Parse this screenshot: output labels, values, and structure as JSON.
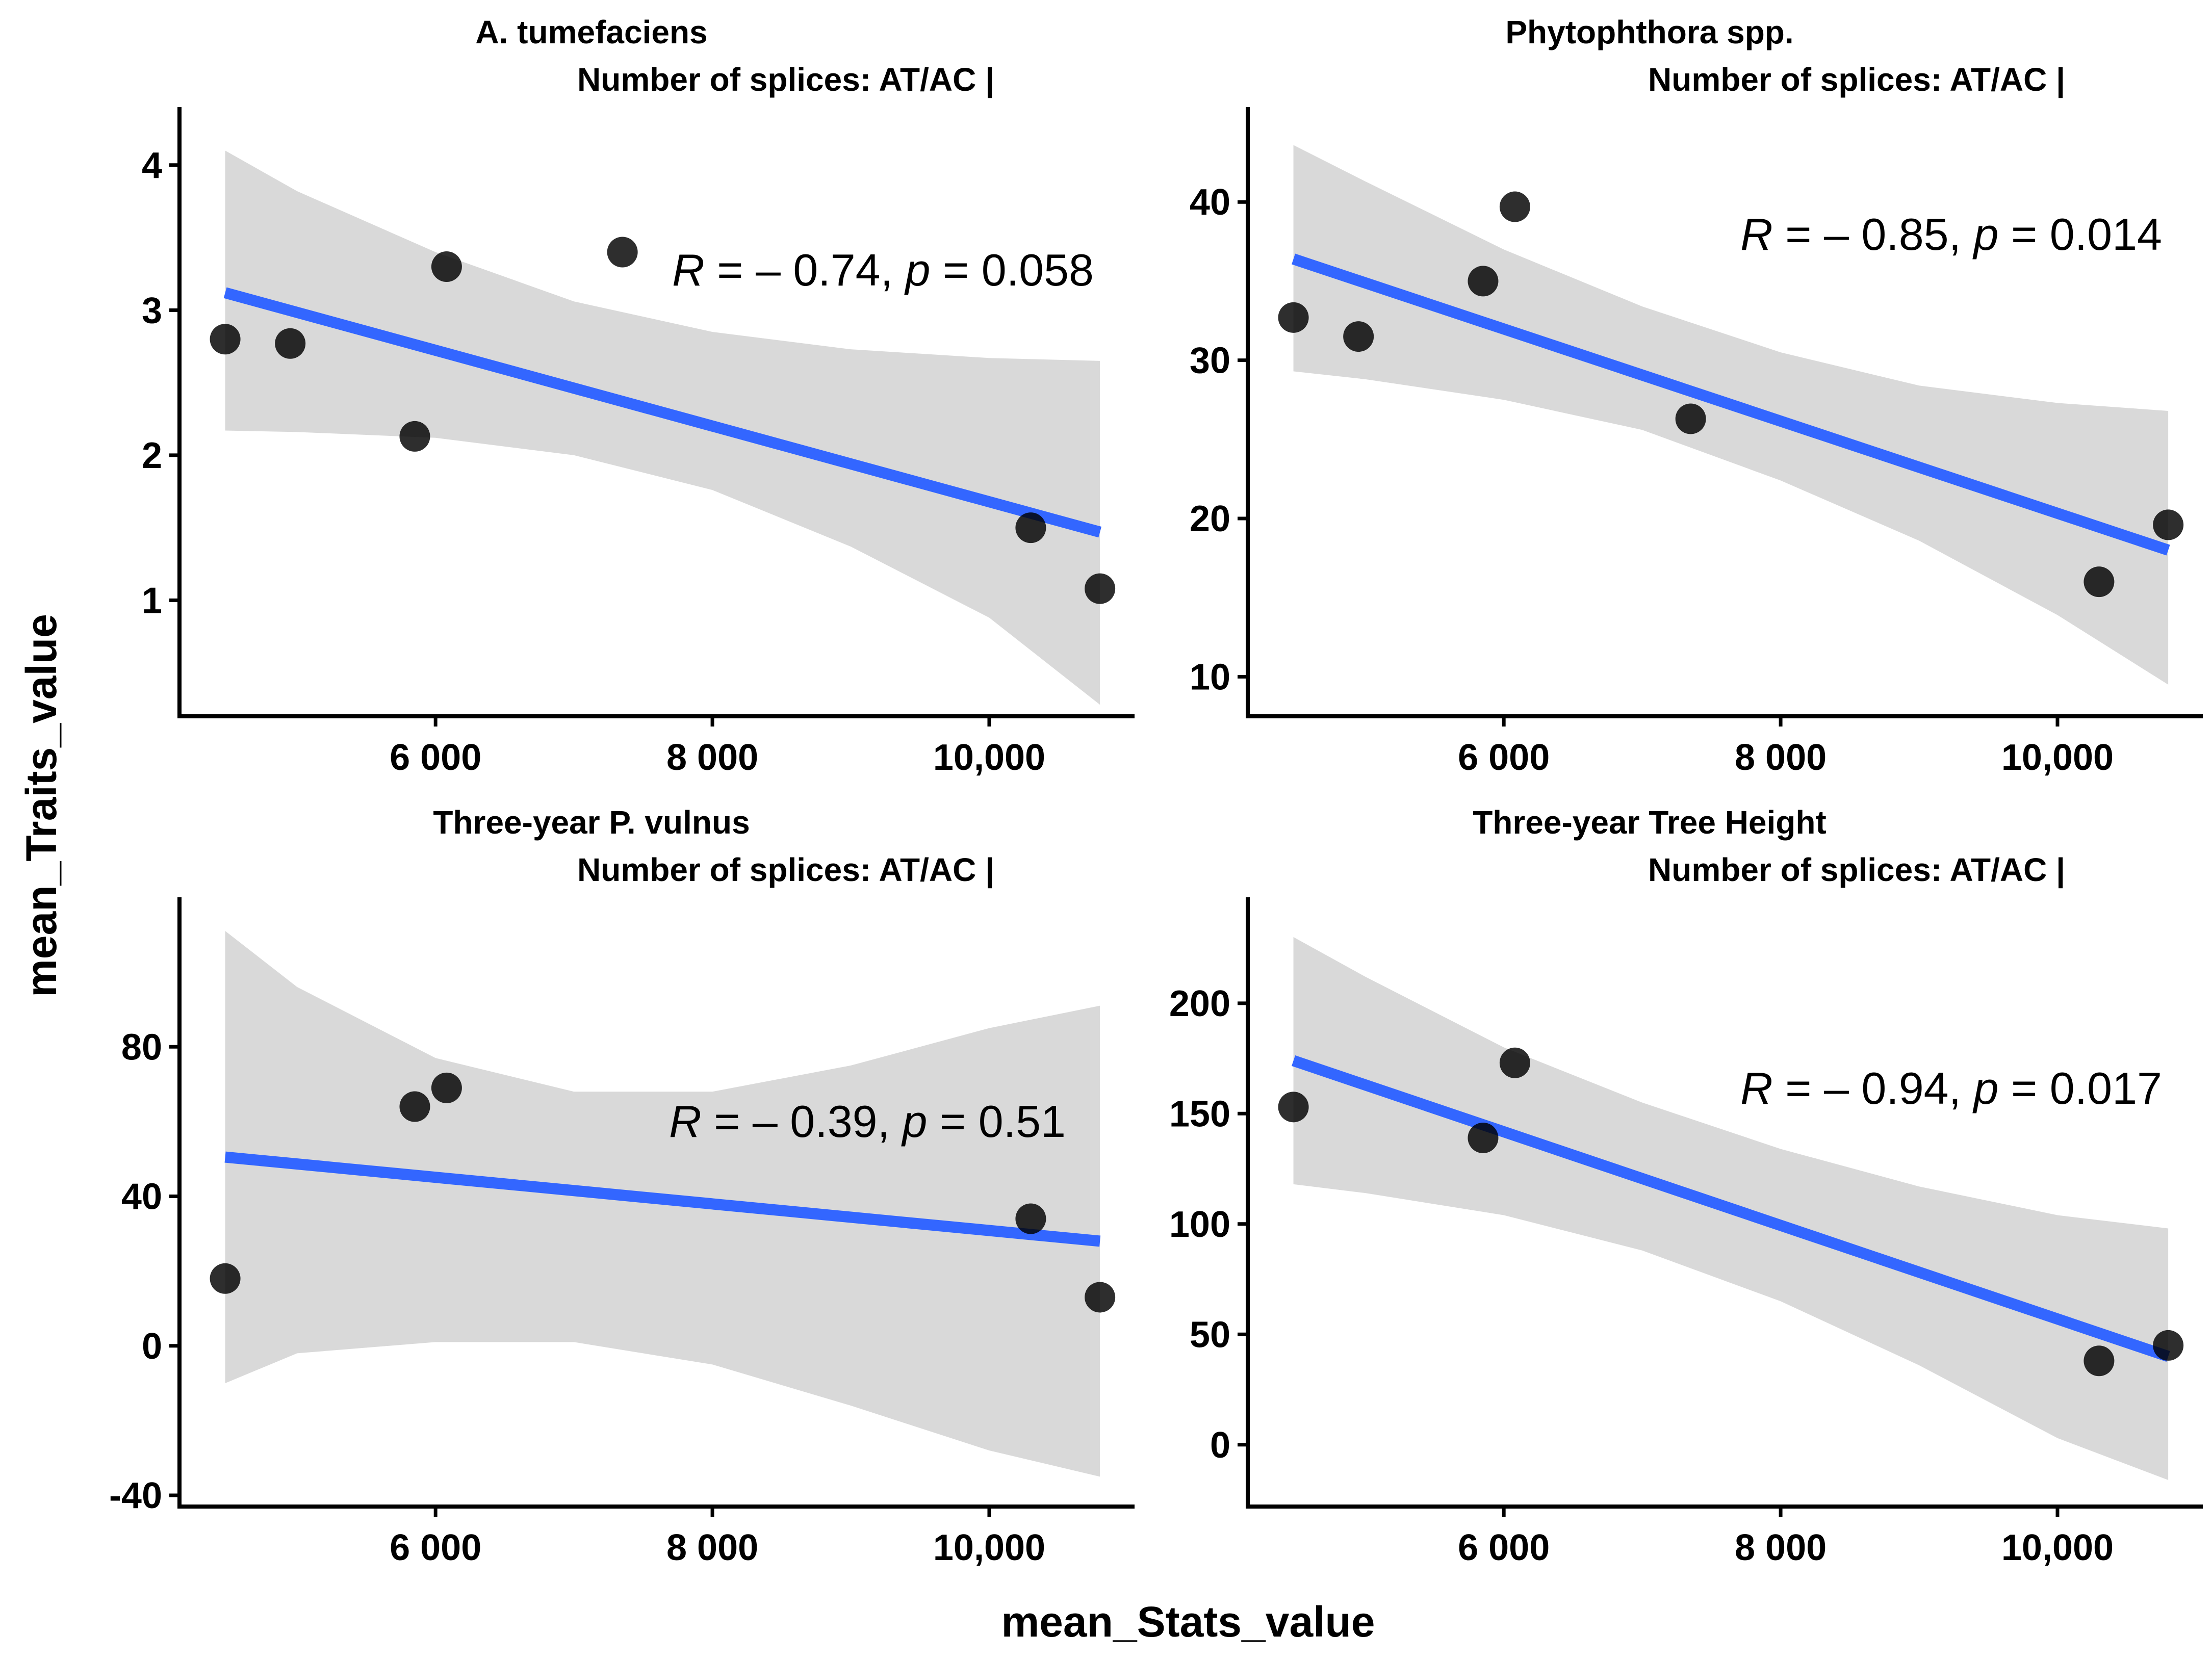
{
  "figure": {
    "x_axis_title": "mean_Stats_value",
    "y_axis_title": "mean_Traits_value"
  },
  "chart_data": [
    {
      "type": "scatter",
      "title": "A. tumefaciens",
      "subtitle": "Number of splices: AT/AC |",
      "xlabel": "mean_Stats_value",
      "ylabel": "mean_Traits_value",
      "xlim": [
        4150,
        11050
      ],
      "ylim": [
        0.2,
        4.4
      ],
      "xticks": [
        6000,
        8000,
        10000
      ],
      "xtick_labels": [
        "6 000",
        "8 000",
        "10,000"
      ],
      "yticks": [
        1,
        2,
        3,
        4
      ],
      "ytick_labels": [
        "1",
        "2",
        "3",
        "4"
      ],
      "points": [
        {
          "x": 4480,
          "y": 2.8
        },
        {
          "x": 4950,
          "y": 2.77
        },
        {
          "x": 5850,
          "y": 2.13
        },
        {
          "x": 6080,
          "y": 3.3
        },
        {
          "x": 7350,
          "y": 3.4
        },
        {
          "x": 10300,
          "y": 1.5
        },
        {
          "x": 10800,
          "y": 1.08
        }
      ],
      "fit": {
        "x": [
          4480,
          10800
        ],
        "y": [
          3.12,
          1.47
        ]
      },
      "ci_upper": [
        [
          4480,
          4.1
        ],
        [
          5000,
          3.82
        ],
        [
          6000,
          3.4
        ],
        [
          7000,
          3.06
        ],
        [
          8000,
          2.85
        ],
        [
          9000,
          2.73
        ],
        [
          10000,
          2.67
        ],
        [
          10800,
          2.65
        ]
      ],
      "ci_lower": [
        [
          4480,
          2.17
        ],
        [
          5000,
          2.16
        ],
        [
          6000,
          2.12
        ],
        [
          7000,
          2.0
        ],
        [
          8000,
          1.76
        ],
        [
          9000,
          1.37
        ],
        [
          10000,
          0.88
        ],
        [
          10800,
          0.28
        ]
      ],
      "annotation": {
        "r_label": "R",
        "r_value": " = – 0.74, ",
        "p_label": "p",
        "p_value": " = 0.058"
      }
    },
    {
      "type": "scatter",
      "title": "Phytophthora spp.",
      "subtitle": "Number of splices: AT/AC |",
      "xlabel": "mean_Stats_value",
      "ylabel": "mean_Traits_value",
      "xlim": [
        4150,
        11050
      ],
      "ylim": [
        7.5,
        46
      ],
      "xticks": [
        6000,
        8000,
        10000
      ],
      "xtick_labels": [
        "6 000",
        "8 000",
        "10,000"
      ],
      "yticks": [
        10,
        20,
        30,
        40
      ],
      "ytick_labels": [
        "10",
        "20",
        "30",
        "40"
      ],
      "points": [
        {
          "x": 4480,
          "y": 32.7
        },
        {
          "x": 4950,
          "y": 31.5
        },
        {
          "x": 5850,
          "y": 35.0
        },
        {
          "x": 6080,
          "y": 39.7
        },
        {
          "x": 7350,
          "y": 26.3
        },
        {
          "x": 10300,
          "y": 16.0
        },
        {
          "x": 10800,
          "y": 19.6
        }
      ],
      "fit": {
        "x": [
          4480,
          10800
        ],
        "y": [
          36.4,
          18.0
        ]
      },
      "ci_upper": [
        [
          4480,
          43.6
        ],
        [
          5000,
          41.3
        ],
        [
          6000,
          37.0
        ],
        [
          7000,
          33.4
        ],
        [
          8000,
          30.5
        ],
        [
          9000,
          28.4
        ],
        [
          10000,
          27.3
        ],
        [
          10800,
          26.8
        ]
      ],
      "ci_lower": [
        [
          4480,
          29.3
        ],
        [
          5000,
          28.8
        ],
        [
          6000,
          27.5
        ],
        [
          7000,
          25.6
        ],
        [
          8000,
          22.4
        ],
        [
          9000,
          18.6
        ],
        [
          10000,
          13.9
        ],
        [
          10800,
          9.5
        ]
      ],
      "annotation": {
        "r_label": "R",
        "r_value": " = – 0.85, ",
        "p_label": "p",
        "p_value": " = 0.014"
      }
    },
    {
      "type": "scatter",
      "title": "Three-year P. vulnus",
      "subtitle": "Number of splices: AT/AC |",
      "xlabel": "mean_Stats_value",
      "ylabel": "mean_Traits_value",
      "xlim": [
        4150,
        11050
      ],
      "ylim": [
        -43,
        120
      ],
      "xticks": [
        6000,
        8000,
        10000
      ],
      "xtick_labels": [
        "6 000",
        "8 000",
        "10,000"
      ],
      "yticks": [
        -40,
        0,
        40,
        80
      ],
      "ytick_labels": [
        "-40",
        "0",
        "40",
        "80"
      ],
      "points": [
        {
          "x": 4480,
          "y": 18
        },
        {
          "x": 5850,
          "y": 64
        },
        {
          "x": 6080,
          "y": 69
        },
        {
          "x": 10300,
          "y": 34
        },
        {
          "x": 10800,
          "y": 13
        }
      ],
      "fit": {
        "x": [
          4480,
          10800
        ],
        "y": [
          50.5,
          28.0
        ]
      },
      "ci_upper": [
        [
          4480,
          111
        ],
        [
          5000,
          96
        ],
        [
          6000,
          77
        ],
        [
          7000,
          68
        ],
        [
          8000,
          68
        ],
        [
          9000,
          75
        ],
        [
          10000,
          85
        ],
        [
          10800,
          91
        ]
      ],
      "ci_lower": [
        [
          4480,
          -10
        ],
        [
          5000,
          -2
        ],
        [
          6000,
          1
        ],
        [
          7000,
          1
        ],
        [
          8000,
          -5
        ],
        [
          9000,
          -16
        ],
        [
          10000,
          -28
        ],
        [
          10800,
          -35
        ]
      ],
      "annotation": {
        "r_label": "R",
        "r_value": " = – 0.39, ",
        "p_label": "p",
        "p_value": " = 0.51"
      }
    },
    {
      "type": "scatter",
      "title": "Three-year Tree Height",
      "subtitle": "Number of splices: AT/AC |",
      "xlabel": "mean_Stats_value",
      "ylabel": "mean_Traits_value",
      "xlim": [
        4150,
        11050
      ],
      "ylim": [
        -28,
        248
      ],
      "xticks": [
        6000,
        8000,
        10000
      ],
      "xtick_labels": [
        "6 000",
        "8 000",
        "10,000"
      ],
      "yticks": [
        0,
        50,
        100,
        150,
        200
      ],
      "ytick_labels": [
        "0",
        "50",
        "100",
        "150",
        "200"
      ],
      "points": [
        {
          "x": 4480,
          "y": 153
        },
        {
          "x": 5850,
          "y": 139
        },
        {
          "x": 6080,
          "y": 173
        },
        {
          "x": 10300,
          "y": 38
        },
        {
          "x": 10800,
          "y": 45
        }
      ],
      "fit": {
        "x": [
          4480,
          10800
        ],
        "y": [
          174,
          40
        ]
      },
      "ci_upper": [
        [
          4480,
          230
        ],
        [
          5000,
          212
        ],
        [
          6000,
          180
        ],
        [
          7000,
          155
        ],
        [
          8000,
          134
        ],
        [
          9000,
          117
        ],
        [
          10000,
          104
        ],
        [
          10800,
          98
        ]
      ],
      "ci_lower": [
        [
          4480,
          118
        ],
        [
          5000,
          114
        ],
        [
          6000,
          104
        ],
        [
          7000,
          88
        ],
        [
          8000,
          65
        ],
        [
          9000,
          36
        ],
        [
          10000,
          3
        ],
        [
          10800,
          -16
        ]
      ],
      "annotation": {
        "r_label": "R",
        "r_value": " = – 0.94, ",
        "p_label": "p",
        "p_value": " = 0.017"
      }
    }
  ]
}
